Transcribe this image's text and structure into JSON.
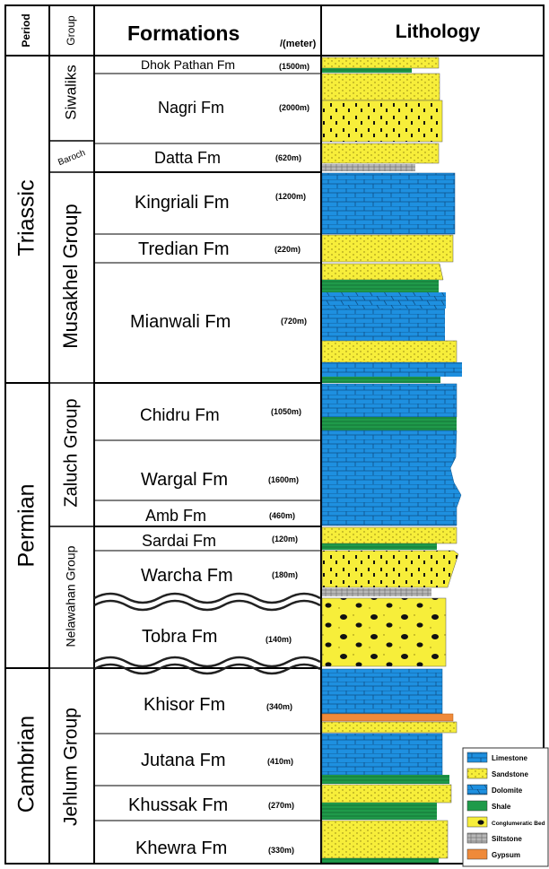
{
  "headers": {
    "period": "Period",
    "group": "Group",
    "formations": "Formations",
    "formations_unit": "/(meter)",
    "lithology": "Lithology"
  },
  "periods": [
    {
      "name": "Triassic"
    },
    {
      "name": "Permian"
    },
    {
      "name": "Cambrian"
    }
  ],
  "groups": [
    {
      "name": "Siwaliks"
    },
    {
      "name": "Baroch"
    },
    {
      "name": "Musakhel Group"
    },
    {
      "name": "Zaluch Group"
    },
    {
      "name": "Nelawahan Group"
    },
    {
      "name": "Jehlum Group"
    }
  ],
  "formations": [
    {
      "name": "Dhok Pathan Fm",
      "thickness": "(1500m)"
    },
    {
      "name": "Nagri Fm",
      "thickness": "(2000m)"
    },
    {
      "name": "Datta Fm",
      "thickness": "(620m)"
    },
    {
      "name": "Kingriali Fm",
      "thickness": "(1200m)"
    },
    {
      "name": "Tredian Fm",
      "thickness": "(220m)"
    },
    {
      "name": "Mianwali Fm",
      "thickness": "(720m)"
    },
    {
      "name": "Chidru Fm",
      "thickness": "(1050m)"
    },
    {
      "name": "Wargal Fm",
      "thickness": "(1600m)"
    },
    {
      "name": "Amb Fm",
      "thickness": "(460m)"
    },
    {
      "name": "Sardai Fm",
      "thickness": "(120m)"
    },
    {
      "name": "Warcha Fm",
      "thickness": "(180m)"
    },
    {
      "name": "Tobra Fm",
      "thickness": "(140m)"
    },
    {
      "name": "Khisor Fm",
      "thickness": "(340m)"
    },
    {
      "name": "Jutana Fm",
      "thickness": "(410m)"
    },
    {
      "name": "Khussak Fm",
      "thickness": "(270m)"
    },
    {
      "name": "Khewra Fm",
      "thickness": "(330m)"
    }
  ],
  "legend": [
    {
      "label": "Limestone",
      "type": "limestone"
    },
    {
      "label": "Sandstone",
      "type": "sandstone"
    },
    {
      "label": "Dolomite",
      "type": "dolomite"
    },
    {
      "label": "Shale",
      "type": "shale"
    },
    {
      "label": "Conglumeratic Bed",
      "type": "conglomerate"
    },
    {
      "label": "Siltstone",
      "type": "siltstone"
    },
    {
      "label": "Gypsum",
      "type": "gypsum"
    }
  ],
  "colors": {
    "limestone": "#1e90e0",
    "sandstone": "#f7ee3a",
    "shale": "#1f9a4a",
    "siltstone": "#a8a8a8",
    "gypsum": "#ef8a3a",
    "line": "#000000"
  }
}
